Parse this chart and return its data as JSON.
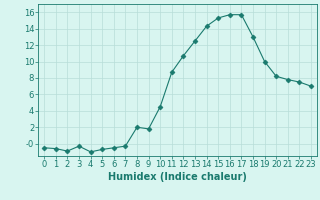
{
  "x": [
    0,
    1,
    2,
    3,
    4,
    5,
    6,
    7,
    8,
    9,
    10,
    11,
    12,
    13,
    14,
    15,
    16,
    17,
    18,
    19,
    20,
    21,
    22,
    23
  ],
  "y": [
    -0.5,
    -0.6,
    -0.9,
    -0.3,
    -1.0,
    -0.7,
    -0.5,
    -0.3,
    2.0,
    1.8,
    4.5,
    8.7,
    10.7,
    12.5,
    14.3,
    15.3,
    15.7,
    15.7,
    13.0,
    10.0,
    8.2,
    7.8,
    7.5,
    7.0
  ],
  "line_color": "#1a7a6e",
  "marker": "D",
  "marker_size": 2.5,
  "bg_color": "#d8f5f0",
  "grid_color": "#b8ddd8",
  "xlabel": "Humidex (Indice chaleur)",
  "ylim": [
    -1.5,
    17
  ],
  "xlim": [
    -0.5,
    23.5
  ],
  "yticks": [
    0,
    2,
    4,
    6,
    8,
    10,
    12,
    14,
    16
  ],
  "ytick_labels": [
    "-0",
    "2",
    "4",
    "6",
    "8",
    "10",
    "12",
    "14",
    "16"
  ],
  "xtick_labels": [
    "0",
    "1",
    "2",
    "3",
    "4",
    "5",
    "6",
    "7",
    "8",
    "9",
    "10",
    "11",
    "12",
    "13",
    "14",
    "15",
    "16",
    "17",
    "18",
    "19",
    "20",
    "21",
    "22",
    "23"
  ],
  "tick_color": "#1a7a6e",
  "label_fontsize": 6,
  "xlabel_fontsize": 7,
  "xlabel_fontweight": "bold"
}
